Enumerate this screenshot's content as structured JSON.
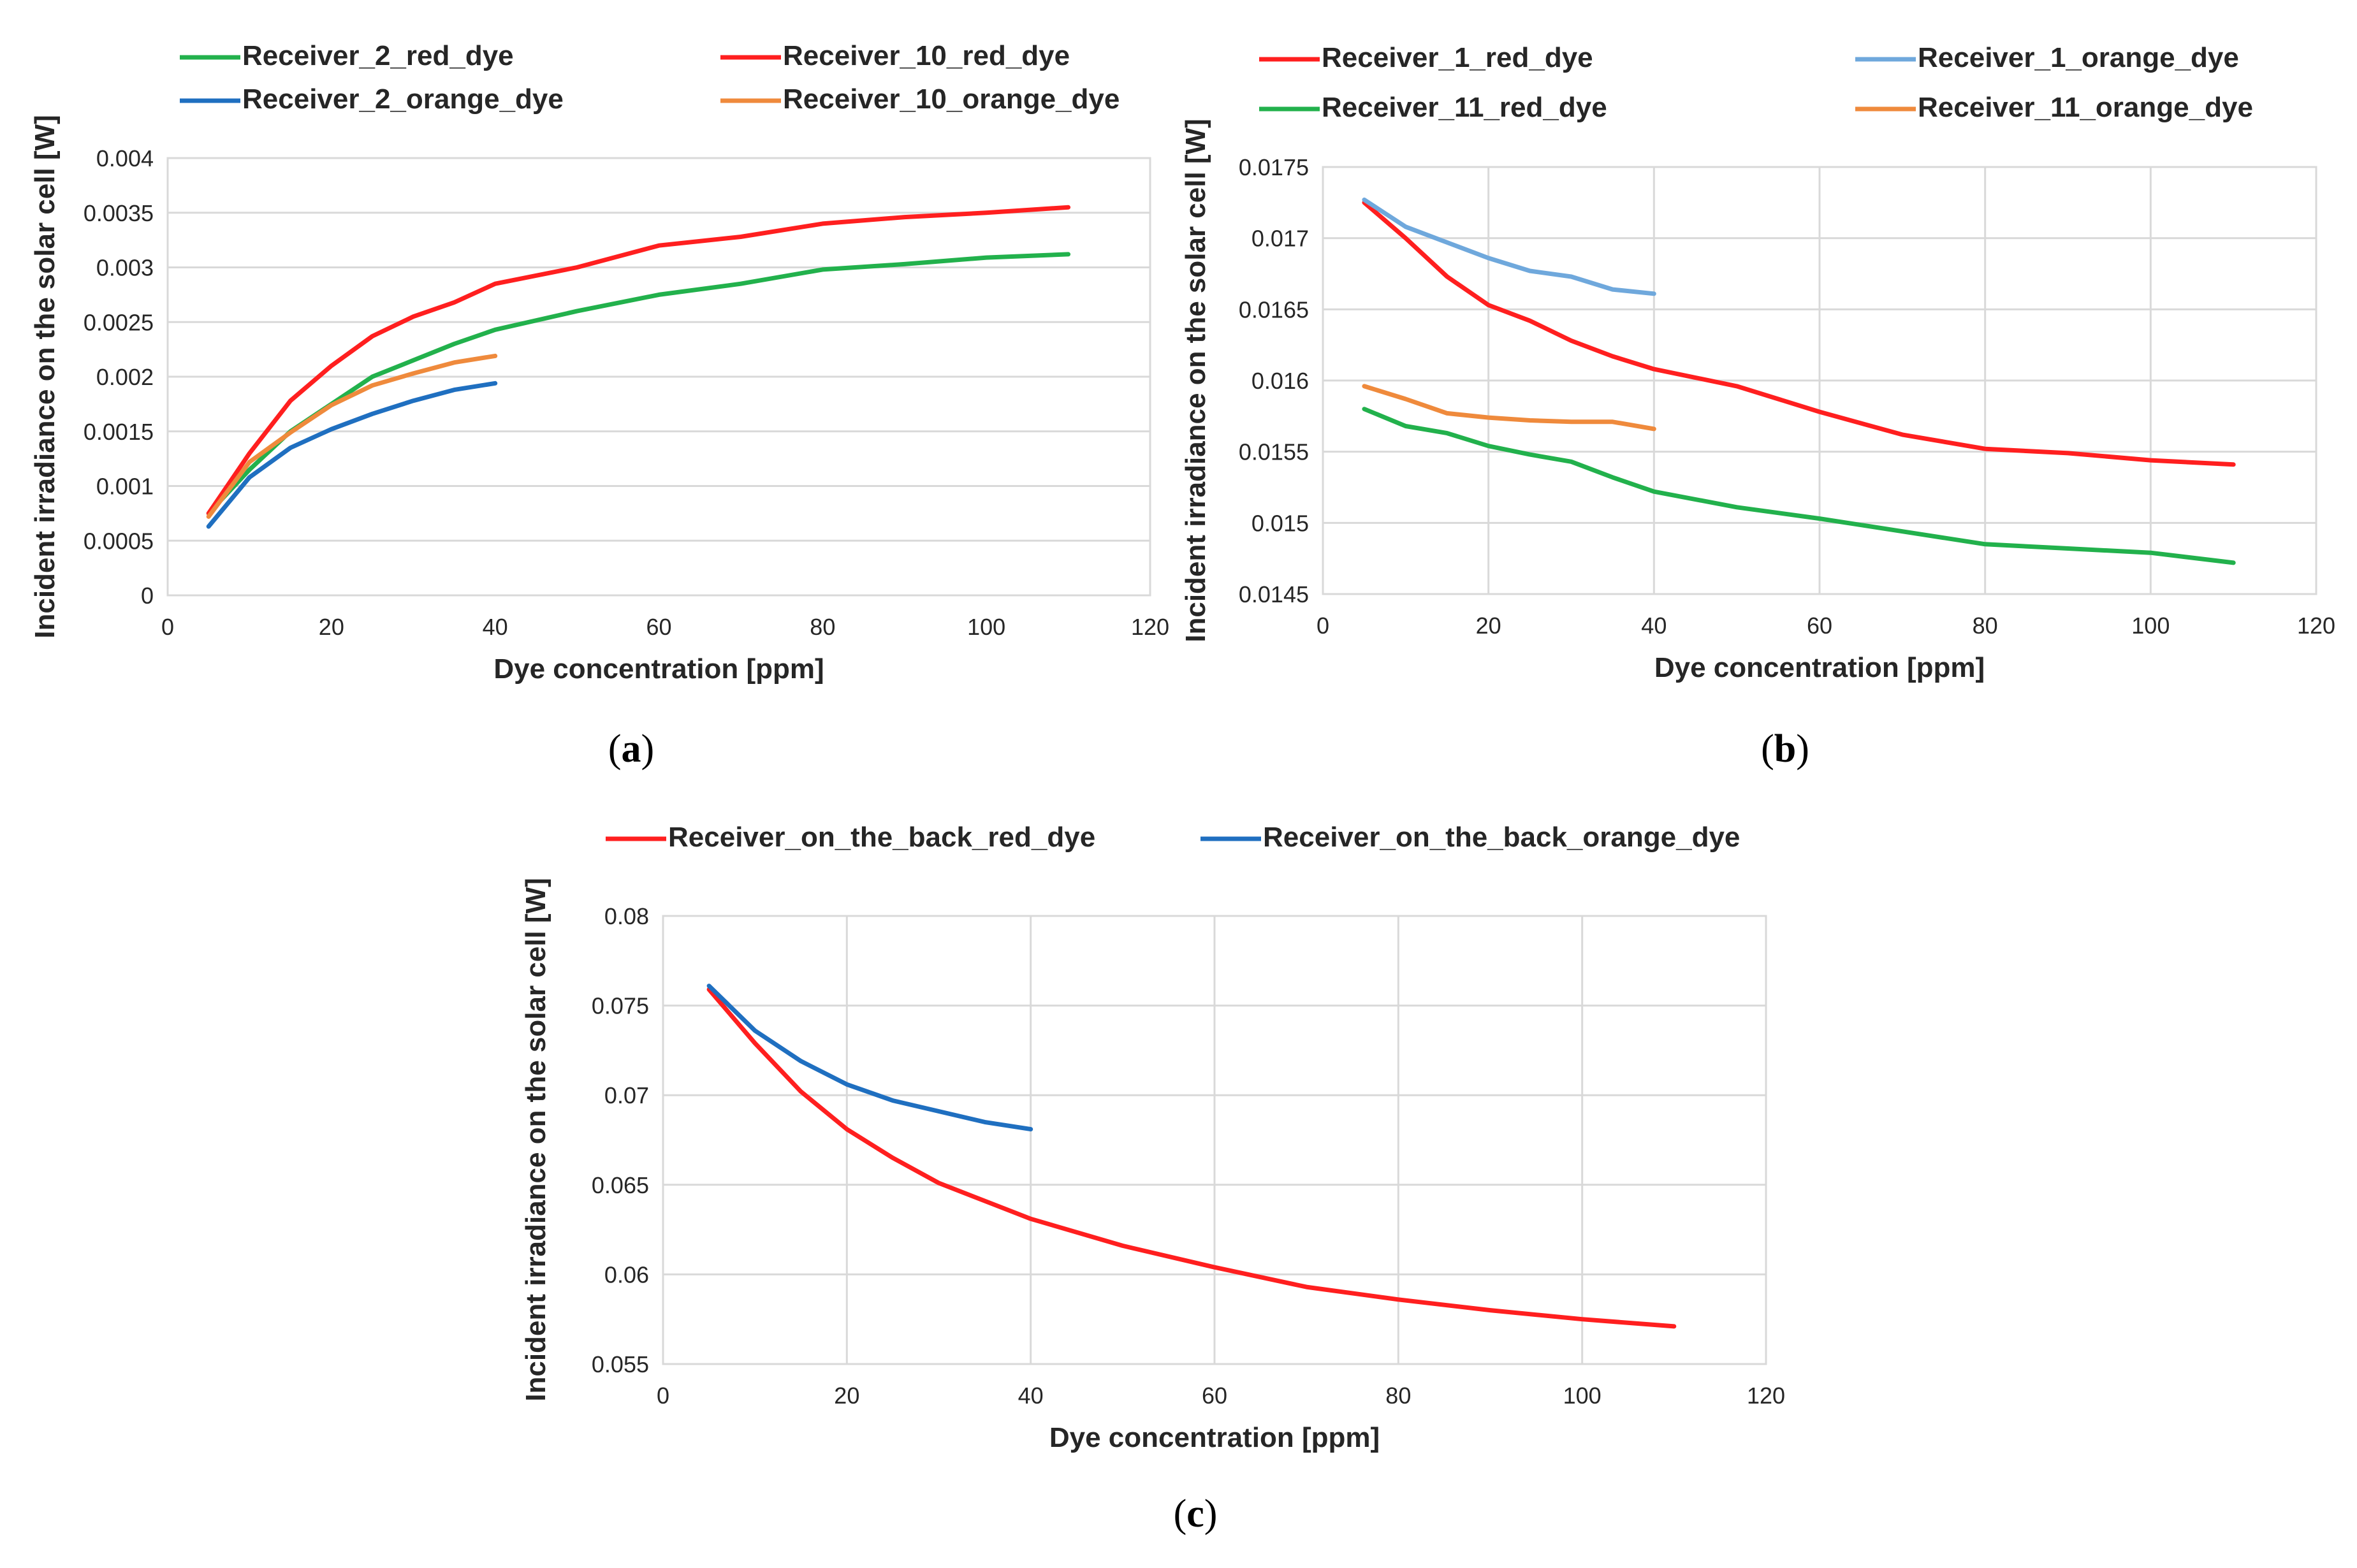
{
  "figure": {
    "panel_labels": [
      {
        "open": "(",
        "letter": "a",
        "close": ")"
      },
      {
        "open": "(",
        "letter": "b",
        "close": ")"
      },
      {
        "open": "(",
        "letter": "c",
        "close": ")"
      }
    ]
  },
  "chart_data": [
    {
      "type": "line",
      "panel": "a",
      "title": "",
      "xlabel": "Dye concentration [ppm]",
      "ylabel": "Incident irradiance on the solar cell [W]",
      "xlim": [
        0,
        120
      ],
      "ylim": [
        0,
        0.004
      ],
      "xticks": [
        0,
        20,
        40,
        60,
        80,
        100,
        120
      ],
      "yticks": [
        0,
        0.0005,
        0.001,
        0.0015,
        0.002,
        0.0025,
        0.003,
        0.0035,
        0.004
      ],
      "xtick_labels": [
        "0",
        "20",
        "40",
        "60",
        "80",
        "100",
        "120"
      ],
      "ytick_labels": [
        "0",
        "0.0005",
        "0.001",
        "0.0015",
        "0.002",
        "0.0025",
        "0.003",
        "0.0035",
        "0.004"
      ],
      "grid": "horizontal",
      "legend_position": "top",
      "series": [
        {
          "name": "Receiver_2_red_dye",
          "color": "#22b14c",
          "x": [
            5,
            10,
            15,
            20,
            25,
            30,
            35,
            40,
            50,
            60,
            70,
            80,
            90,
            100,
            110
          ],
          "y": [
            0.00075,
            0.00115,
            0.0015,
            0.00175,
            0.002,
            0.00215,
            0.0023,
            0.00243,
            0.0026,
            0.00275,
            0.00285,
            0.00298,
            0.00303,
            0.00309,
            0.00312
          ]
        },
        {
          "name": "Receiver_10_red_dye",
          "color": "#ff1f1f",
          "x": [
            5,
            10,
            15,
            20,
            25,
            30,
            35,
            40,
            50,
            60,
            70,
            80,
            90,
            100,
            110
          ],
          "y": [
            0.00075,
            0.0013,
            0.00178,
            0.0021,
            0.00237,
            0.00255,
            0.00268,
            0.00285,
            0.003,
            0.0032,
            0.00328,
            0.0034,
            0.00346,
            0.0035,
            0.00355
          ]
        },
        {
          "name": "Receiver_2_orange_dye",
          "color": "#1f6fc0",
          "x": [
            5,
            10,
            15,
            20,
            25,
            30,
            35,
            40
          ],
          "y": [
            0.00063,
            0.00108,
            0.00135,
            0.00152,
            0.00166,
            0.00178,
            0.00188,
            0.00194
          ]
        },
        {
          "name": "Receiver_10_orange_dye",
          "color": "#ef8a3c",
          "x": [
            5,
            10,
            15,
            20,
            25,
            30,
            35,
            40
          ],
          "y": [
            0.00072,
            0.00122,
            0.00149,
            0.00174,
            0.00192,
            0.00203,
            0.00213,
            0.00219
          ]
        }
      ]
    },
    {
      "type": "line",
      "panel": "b",
      "title": "",
      "xlabel": "Dye concentration [ppm]",
      "ylabel": "Incident irradiance on the solar cell [W]",
      "xlim": [
        0,
        120
      ],
      "ylim": [
        0.0145,
        0.0175
      ],
      "xticks": [
        0,
        20,
        40,
        60,
        80,
        100,
        120
      ],
      "yticks": [
        0.0145,
        0.015,
        0.0155,
        0.016,
        0.0165,
        0.017,
        0.0175
      ],
      "xtick_labels": [
        "0",
        "20",
        "40",
        "60",
        "80",
        "100",
        "120"
      ],
      "ytick_labels": [
        "0.0145",
        "0.015",
        "0.0155",
        "0.016",
        "0.0165",
        "0.017",
        "0.0175"
      ],
      "grid": "both",
      "legend_position": "top",
      "series": [
        {
          "name": "Receiver_1_red_dye",
          "color": "#ff1f1f",
          "x": [
            5,
            10,
            15,
            20,
            25,
            30,
            35,
            40,
            50,
            60,
            70,
            80,
            90,
            100,
            110
          ],
          "y": [
            0.01725,
            0.017,
            0.01673,
            0.01653,
            0.01642,
            0.01628,
            0.01617,
            0.01608,
            0.01596,
            0.01578,
            0.01562,
            0.01552,
            0.01549,
            0.01544,
            0.01541
          ]
        },
        {
          "name": "Receiver_1_orange_dye",
          "color": "#6fa8dc",
          "x": [
            5,
            10,
            15,
            20,
            25,
            30,
            35,
            40
          ],
          "y": [
            0.01727,
            0.01708,
            0.01697,
            0.01686,
            0.01677,
            0.01673,
            0.01664,
            0.01661
          ]
        },
        {
          "name": "Receiver_11_red_dye",
          "color": "#22b14c",
          "x": [
            5,
            10,
            15,
            20,
            25,
            30,
            35,
            40,
            50,
            60,
            70,
            80,
            90,
            100,
            110
          ],
          "y": [
            0.0158,
            0.01568,
            0.01563,
            0.01554,
            0.01548,
            0.01543,
            0.01532,
            0.01522,
            0.01511,
            0.01503,
            0.01494,
            0.01485,
            0.01482,
            0.01479,
            0.01472
          ]
        },
        {
          "name": "Receiver_11_orange_dye",
          "color": "#ef8a3c",
          "x": [
            5,
            10,
            15,
            20,
            25,
            30,
            35,
            40
          ],
          "y": [
            0.01596,
            0.01587,
            0.01577,
            0.01574,
            0.01572,
            0.01571,
            0.01571,
            0.01566
          ]
        }
      ]
    },
    {
      "type": "line",
      "panel": "c",
      "title": "",
      "xlabel": "Dye concentration [ppm]",
      "ylabel": "Incident irradiance on the solar cell [W]",
      "xlim": [
        0,
        120
      ],
      "ylim": [
        0.055,
        0.08
      ],
      "xticks": [
        0,
        20,
        40,
        60,
        80,
        100,
        120
      ],
      "yticks": [
        0.055,
        0.06,
        0.065,
        0.07,
        0.075,
        0.08
      ],
      "xtick_labels": [
        "0",
        "20",
        "40",
        "60",
        "80",
        "100",
        "120"
      ],
      "ytick_labels": [
        "0.055",
        "0.06",
        "0.065",
        "0.07",
        "0.075",
        "0.08"
      ],
      "grid": "both",
      "legend_position": "top",
      "series": [
        {
          "name": "Receiver_on_the_back_red_dye",
          "color": "#ff1f1f",
          "x": [
            5,
            10,
            15,
            20,
            25,
            30,
            35,
            40,
            50,
            60,
            70,
            80,
            90,
            100,
            110
          ],
          "y": [
            0.0759,
            0.0729,
            0.0702,
            0.0681,
            0.0665,
            0.0651,
            0.0641,
            0.0631,
            0.0616,
            0.0604,
            0.0593,
            0.0586,
            0.058,
            0.0575,
            0.0571
          ]
        },
        {
          "name": "Receiver_on_the_back_orange_dye",
          "color": "#1f6fc0",
          "x": [
            5,
            10,
            15,
            20,
            25,
            30,
            35,
            40
          ],
          "y": [
            0.0761,
            0.0736,
            0.0719,
            0.0706,
            0.0697,
            0.0691,
            0.0685,
            0.0681
          ]
        }
      ]
    }
  ]
}
